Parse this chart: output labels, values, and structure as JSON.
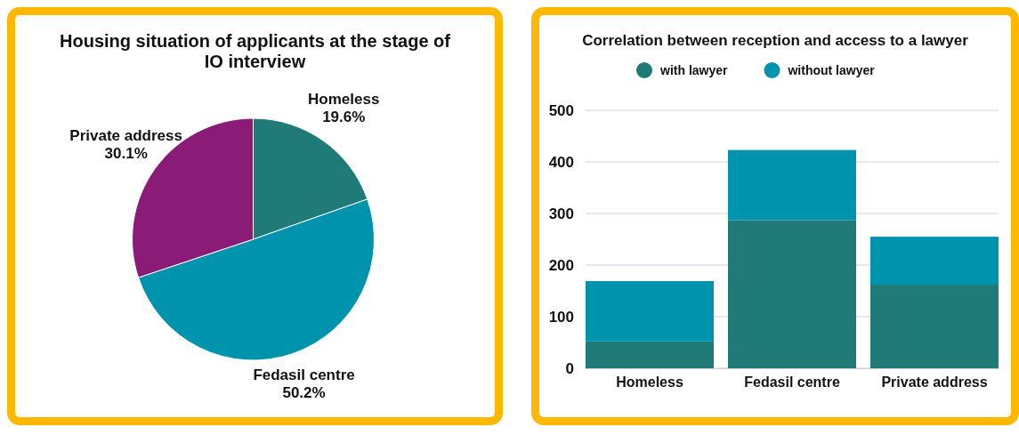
{
  "chart_data": [
    {
      "type": "pie",
      "title": "Housing situation of applicants at the stage of IO interview",
      "categories": [
        "Homeless",
        "Fedasil centre",
        "Private address"
      ],
      "values": [
        19.6,
        50.2,
        30.1
      ],
      "colors": [
        "#1f7a78",
        "#0093ad",
        "#8a1c78"
      ],
      "value_labels": [
        "19.6%",
        "50.2%",
        "30.1%"
      ]
    },
    {
      "type": "bar",
      "title": "Correlation between reception and access to a lawyer",
      "categories": [
        "Homeless",
        "Fedasil centre",
        "Private address"
      ],
      "stacked": true,
      "series": [
        {
          "name": "with lawyer",
          "color": "#1f7a78",
          "values": [
            52,
            287,
            162
          ]
        },
        {
          "name": "without lawyer",
          "color": "#0093ad",
          "values": [
            117,
            136,
            93
          ]
        }
      ],
      "ylim": [
        0,
        500
      ],
      "yticks": [
        0,
        100,
        200,
        300,
        400,
        500
      ],
      "grid": "y",
      "legend": "top"
    }
  ]
}
